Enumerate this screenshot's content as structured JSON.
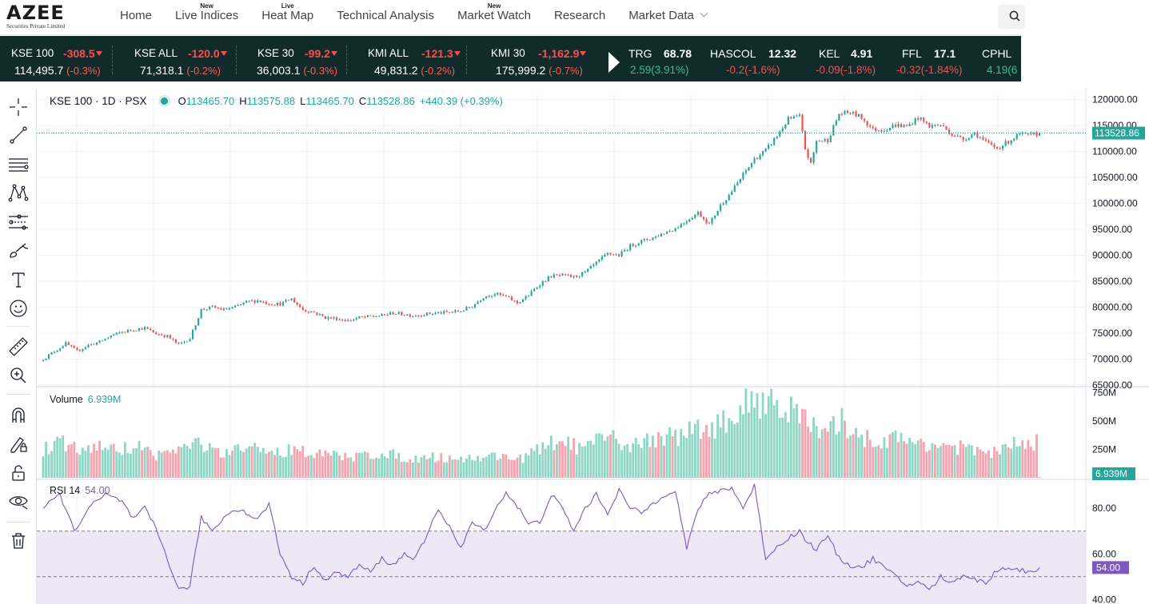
{
  "logo": {
    "mark": "AZEE",
    "subtitle": "Securities Private Limited"
  },
  "nav": [
    {
      "label": "Home",
      "badge": ""
    },
    {
      "label": "Live Indices",
      "badge": "New"
    },
    {
      "label": "Heat Map",
      "badge": "Live"
    },
    {
      "label": "Technical Analysis",
      "badge": ""
    },
    {
      "label": "Market Watch",
      "badge": "New"
    },
    {
      "label": "Research",
      "badge": ""
    },
    {
      "label": "Market Data",
      "badge": ""
    }
  ],
  "indices": [
    {
      "name": "KSE 100",
      "change": "-308.5",
      "value": "114,495.7",
      "pct": "(-0.3%)"
    },
    {
      "name": "KSE ALL",
      "change": "-120.0",
      "value": "71,318.1",
      "pct": "(-0.2%)"
    },
    {
      "name": "KSE 30",
      "change": "-99.2",
      "value": "36,003.1",
      "pct": "(-0.3%)"
    },
    {
      "name": "KMI ALL",
      "change": "-121.3",
      "value": "49,831.2",
      "pct": "(-0.2%)"
    },
    {
      "name": "KMI 30",
      "change": "-1,162.9",
      "value": "175,999.2",
      "pct": "(-0.7%)"
    }
  ],
  "stocks": [
    {
      "symbol": "TRG",
      "price": "68.78",
      "change": "2.59(3.91%)",
      "direction": "up"
    },
    {
      "symbol": "HASCOL",
      "price": "12.32",
      "change": "-0.2(-1.6%)",
      "direction": "down"
    },
    {
      "symbol": "KEL",
      "price": "4.91",
      "change": "-0.09(-1.8%)",
      "direction": "down"
    },
    {
      "symbol": "FFL",
      "price": "17.1",
      "change": "-0.32(-1.84%)",
      "direction": "down"
    },
    {
      "symbol": "CPHL",
      "price": "",
      "change": "4.19(6",
      "direction": "up"
    }
  ],
  "tools": [
    "crosshair-icon",
    "trend-line-icon",
    "fib-lines-icon",
    "pattern-icon",
    "forecast-icon",
    "brush-icon",
    "text-icon",
    "emoji-icon",
    "ruler-icon",
    "zoom-in-icon",
    "magnet-icon",
    "lock-draw-icon",
    "lock-icon",
    "eye-icon",
    "trash-icon"
  ],
  "chart": {
    "symbol": "KSE 100 · 1D · PSX",
    "ohlc": {
      "o_label": "O",
      "o": "113465.70",
      "h_label": "H",
      "h": "113575.88",
      "l_label": "L",
      "l": "113465.70",
      "c_label": "C",
      "c": "113528.86",
      "change": "+440.39 (+0.39%)"
    },
    "price_ticks": [
      "120000.00",
      "115000.00",
      "110000.00",
      "105000.00",
      "100000.00",
      "95000.00",
      "90000.00",
      "85000.00",
      "80000.00",
      "75000.00",
      "70000.00",
      "65000.00"
    ],
    "last_price": "113528.86",
    "volume_label": "Volume",
    "volume_value": "6.939M",
    "volume_ticks": [
      "750M",
      "500M",
      "250M"
    ],
    "rsi_label": "RSI",
    "rsi_length": "14",
    "rsi_value": "54.00",
    "rsi_ticks": [
      "80.00",
      "60.00",
      "40.00"
    ],
    "colors": {
      "up": "#26a69a",
      "down": "#ef5350",
      "vol_up": "#8fd6c5",
      "vol_down": "#f4a4b0",
      "rsi": "#7e57c2",
      "rsi_band": "#ede7f6"
    }
  },
  "chart_data": {
    "type": "candlestick",
    "price_axis": {
      "ylim": [
        65000,
        121000
      ]
    },
    "volume_axis": {
      "unit": "M",
      "ylim": [
        0,
        790
      ]
    },
    "rsi_axis": {
      "ylim": [
        38,
        92
      ],
      "upper_band": 70,
      "lower_band": 50
    },
    "close_keyframes": [
      [
        0,
        70000
      ],
      [
        4,
        71500
      ],
      [
        8,
        73000
      ],
      [
        12,
        71500
      ],
      [
        16,
        72700
      ],
      [
        20,
        73300
      ],
      [
        24,
        74500
      ],
      [
        28,
        75200
      ],
      [
        32,
        75700
      ],
      [
        36,
        76000
      ],
      [
        40,
        74900
      ],
      [
        44,
        74400
      ],
      [
        48,
        72800
      ],
      [
        52,
        74000
      ],
      [
        56,
        79500
      ],
      [
        60,
        80000
      ],
      [
        64,
        79500
      ],
      [
        68,
        80000
      ],
      [
        72,
        81000
      ],
      [
        76,
        81300
      ],
      [
        80,
        80700
      ],
      [
        84,
        80600
      ],
      [
        88,
        81600
      ],
      [
        92,
        79500
      ],
      [
        96,
        79000
      ],
      [
        100,
        78000
      ],
      [
        104,
        77800
      ],
      [
        108,
        77400
      ],
      [
        112,
        78000
      ],
      [
        116,
        78200
      ],
      [
        120,
        78400
      ],
      [
        124,
        78900
      ],
      [
        128,
        78600
      ],
      [
        132,
        78400
      ],
      [
        136,
        78700
      ],
      [
        140,
        78900
      ],
      [
        144,
        79000
      ],
      [
        148,
        79300
      ],
      [
        152,
        80200
      ],
      [
        156,
        82000
      ],
      [
        160,
        82600
      ],
      [
        164,
        82000
      ],
      [
        168,
        80800
      ],
      [
        172,
        82300
      ],
      [
        176,
        84500
      ],
      [
        180,
        86000
      ],
      [
        184,
        86100
      ],
      [
        188,
        85800
      ],
      [
        192,
        86700
      ],
      [
        196,
        88500
      ],
      [
        200,
        90300
      ],
      [
        204,
        90000
      ],
      [
        208,
        91800
      ],
      [
        212,
        92700
      ],
      [
        216,
        93400
      ],
      [
        220,
        94300
      ],
      [
        224,
        95200
      ],
      [
        228,
        96700
      ],
      [
        232,
        98200
      ],
      [
        236,
        96000
      ],
      [
        240,
        99600
      ],
      [
        244,
        102300
      ],
      [
        248,
        105500
      ],
      [
        252,
        108500
      ],
      [
        256,
        110200
      ],
      [
        260,
        113000
      ],
      [
        264,
        116200
      ],
      [
        268,
        116700
      ],
      [
        270,
        110500
      ],
      [
        272,
        107500
      ],
      [
        274,
        112000
      ],
      [
        278,
        112200
      ],
      [
        282,
        117200
      ],
      [
        286,
        117500
      ],
      [
        290,
        116500
      ],
      [
        294,
        114200
      ],
      [
        298,
        114200
      ],
      [
        302,
        115100
      ],
      [
        306,
        114800
      ],
      [
        310,
        116500
      ],
      [
        314,
        114900
      ],
      [
        318,
        115100
      ],
      [
        322,
        113300
      ],
      [
        326,
        112300
      ],
      [
        330,
        113600
      ],
      [
        334,
        111700
      ],
      [
        338,
        110600
      ],
      [
        342,
        111900
      ],
      [
        346,
        113300
      ],
      [
        350,
        113000
      ],
      [
        353,
        113528.86
      ]
    ],
    "volume_keyframes": [
      [
        0,
        260
      ],
      [
        8,
        320
      ],
      [
        14,
        230
      ],
      [
        20,
        300
      ],
      [
        26,
        240
      ],
      [
        32,
        300
      ],
      [
        40,
        210
      ],
      [
        48,
        260
      ],
      [
        56,
        320
      ],
      [
        60,
        250
      ],
      [
        64,
        200
      ],
      [
        70,
        260
      ],
      [
        76,
        270
      ],
      [
        84,
        220
      ],
      [
        90,
        300
      ],
      [
        96,
        190
      ],
      [
        100,
        230
      ],
      [
        106,
        180
      ],
      [
        112,
        200
      ],
      [
        120,
        230
      ],
      [
        128,
        180
      ],
      [
        134,
        180
      ],
      [
        140,
        190
      ],
      [
        150,
        170
      ],
      [
        160,
        200
      ],
      [
        170,
        180
      ],
      [
        180,
        310
      ],
      [
        186,
        330
      ],
      [
        190,
        260
      ],
      [
        196,
        320
      ],
      [
        200,
        370
      ],
      [
        206,
        300
      ],
      [
        212,
        320
      ],
      [
        218,
        380
      ],
      [
        224,
        370
      ],
      [
        230,
        430
      ],
      [
        236,
        480
      ],
      [
        240,
        470
      ],
      [
        246,
        600
      ],
      [
        252,
        720
      ],
      [
        258,
        730
      ],
      [
        262,
        670
      ],
      [
        266,
        580
      ],
      [
        270,
        540
      ],
      [
        274,
        420
      ],
      [
        278,
        380
      ],
      [
        282,
        530
      ],
      [
        286,
        460
      ],
      [
        290,
        380
      ],
      [
        294,
        330
      ],
      [
        300,
        360
      ],
      [
        306,
        330
      ],
      [
        312,
        320
      ],
      [
        318,
        300
      ],
      [
        324,
        280
      ],
      [
        330,
        240
      ],
      [
        336,
        230
      ],
      [
        342,
        270
      ],
      [
        346,
        330
      ],
      [
        350,
        260
      ],
      [
        352,
        360
      ],
      [
        353,
        7
      ]
    ],
    "rsi_keyframes": [
      [
        0,
        80
      ],
      [
        6,
        86
      ],
      [
        11,
        70
      ],
      [
        16,
        80
      ],
      [
        22,
        86
      ],
      [
        28,
        83
      ],
      [
        32,
        75
      ],
      [
        36,
        80
      ],
      [
        40,
        71
      ],
      [
        44,
        58
      ],
      [
        48,
        44
      ],
      [
        52,
        46
      ],
      [
        56,
        76
      ],
      [
        60,
        70
      ],
      [
        64,
        76
      ],
      [
        68,
        80
      ],
      [
        72,
        78
      ],
      [
        76,
        75
      ],
      [
        80,
        82
      ],
      [
        84,
        60
      ],
      [
        88,
        50
      ],
      [
        92,
        47
      ],
      [
        96,
        55
      ],
      [
        100,
        48
      ],
      [
        104,
        52
      ],
      [
        108,
        50
      ],
      [
        112,
        55
      ],
      [
        116,
        52
      ],
      [
        120,
        58
      ],
      [
        124,
        55
      ],
      [
        128,
        60
      ],
      [
        132,
        58
      ],
      [
        136,
        68
      ],
      [
        140,
        80
      ],
      [
        144,
        72
      ],
      [
        148,
        62
      ],
      [
        152,
        74
      ],
      [
        156,
        70
      ],
      [
        160,
        79
      ],
      [
        164,
        87
      ],
      [
        168,
        81
      ],
      [
        172,
        73
      ],
      [
        176,
        74
      ],
      [
        180,
        86
      ],
      [
        184,
        80
      ],
      [
        188,
        70
      ],
      [
        192,
        80
      ],
      [
        196,
        86
      ],
      [
        200,
        78
      ],
      [
        204,
        88
      ],
      [
        208,
        80
      ],
      [
        212,
        78
      ],
      [
        216,
        82
      ],
      [
        220,
        86
      ],
      [
        224,
        88
      ],
      [
        228,
        62
      ],
      [
        232,
        80
      ],
      [
        236,
        86
      ],
      [
        240,
        88
      ],
      [
        244,
        89
      ],
      [
        248,
        80
      ],
      [
        252,
        90
      ],
      [
        256,
        58
      ],
      [
        260,
        63
      ],
      [
        264,
        67
      ],
      [
        268,
        70
      ],
      [
        270,
        66
      ],
      [
        274,
        62
      ],
      [
        278,
        68
      ],
      [
        282,
        58
      ],
      [
        286,
        55
      ],
      [
        290,
        54
      ],
      [
        294,
        58
      ],
      [
        298,
        54
      ],
      [
        302,
        50
      ],
      [
        306,
        46
      ],
      [
        310,
        48
      ],
      [
        314,
        44
      ],
      [
        318,
        50
      ],
      [
        322,
        47
      ],
      [
        326,
        51
      ],
      [
        330,
        49
      ],
      [
        334,
        47
      ],
      [
        338,
        53
      ],
      [
        342,
        54
      ],
      [
        346,
        53
      ],
      [
        350,
        52
      ],
      [
        353,
        54
      ]
    ]
  }
}
